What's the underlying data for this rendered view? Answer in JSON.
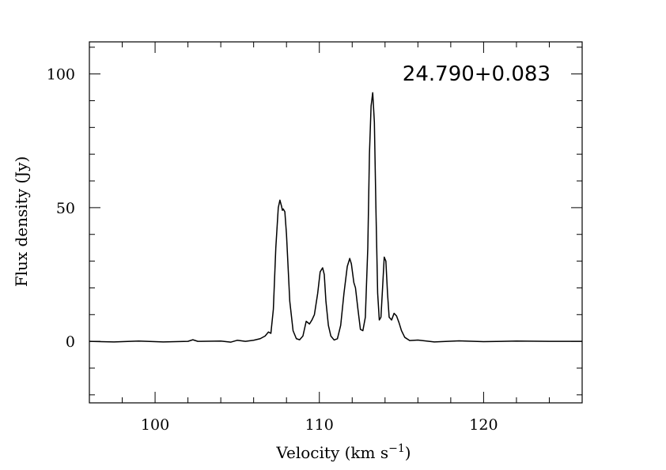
{
  "chart_data": {
    "type": "line",
    "annotation": "24.790+0.083",
    "xlabel": "Velocity (km s",
    "xlabel_unit_exponent": "−1",
    "xlabel_close": ")",
    "ylabel": "Flux density (Jy)",
    "xlim": [
      96,
      126
    ],
    "ylim": [
      -23,
      112
    ],
    "x_ticks": [
      100,
      110,
      120
    ],
    "x_tick_labels": [
      "100",
      "110",
      "120"
    ],
    "y_ticks": [
      0,
      50,
      100
    ],
    "y_tick_labels": [
      "0",
      "50",
      "100"
    ],
    "x_minor_step": 2,
    "y_minor_step": 10,
    "grid": false,
    "series": [
      {
        "x": [
          96.0,
          97.5,
          99.0,
          100.5,
          102.0,
          102.3,
          102.6,
          104.0,
          104.6,
          105.0,
          105.5,
          106.0,
          106.4,
          106.7,
          106.9,
          107.05,
          107.2,
          107.35,
          107.5,
          107.6,
          107.7,
          107.75,
          107.8,
          107.9,
          108.0,
          108.2,
          108.4,
          108.6,
          108.8,
          109.0,
          109.2,
          109.4,
          109.55,
          109.7,
          109.9,
          110.05,
          110.2,
          110.3,
          110.4,
          110.55,
          110.7,
          110.9,
          111.1,
          111.3,
          111.5,
          111.7,
          111.85,
          111.95,
          112.1,
          112.2,
          112.35,
          112.5,
          112.65,
          112.8,
          112.95,
          113.05,
          113.15,
          113.25,
          113.35,
          113.45,
          113.55,
          113.65,
          113.75,
          113.85,
          113.95,
          114.05,
          114.15,
          114.25,
          114.4,
          114.55,
          114.7,
          114.85,
          115.0,
          115.2,
          115.5,
          116.0,
          117.0,
          118.5,
          120.0,
          122.0,
          124.0,
          126.0
        ],
        "y": [
          0.0,
          -0.2,
          0.1,
          -0.2,
          0.0,
          0.6,
          0.0,
          0.1,
          -0.3,
          0.4,
          0.0,
          0.4,
          1.0,
          2.0,
          3.5,
          3.0,
          12.0,
          35.0,
          50.0,
          52.8,
          50.5,
          49.0,
          49.5,
          48.5,
          40.0,
          15.0,
          4.0,
          1.0,
          0.6,
          2.0,
          7.5,
          6.5,
          8.0,
          10.0,
          18.0,
          26.0,
          27.5,
          25.0,
          15.0,
          6.0,
          2.0,
          0.5,
          1.0,
          6.0,
          18.0,
          28.0,
          31.0,
          29.0,
          22.0,
          20.0,
          12.0,
          4.5,
          4.0,
          9.0,
          35.0,
          70.0,
          88.0,
          93.0,
          82.0,
          48.0,
          18.0,
          8.0,
          9.0,
          20.0,
          31.5,
          30.0,
          18.0,
          9.0,
          8.0,
          10.5,
          9.5,
          7.0,
          4.0,
          1.5,
          0.3,
          0.5,
          -0.2,
          0.2,
          -0.1,
          0.1,
          0.0,
          0.0
        ]
      }
    ]
  }
}
